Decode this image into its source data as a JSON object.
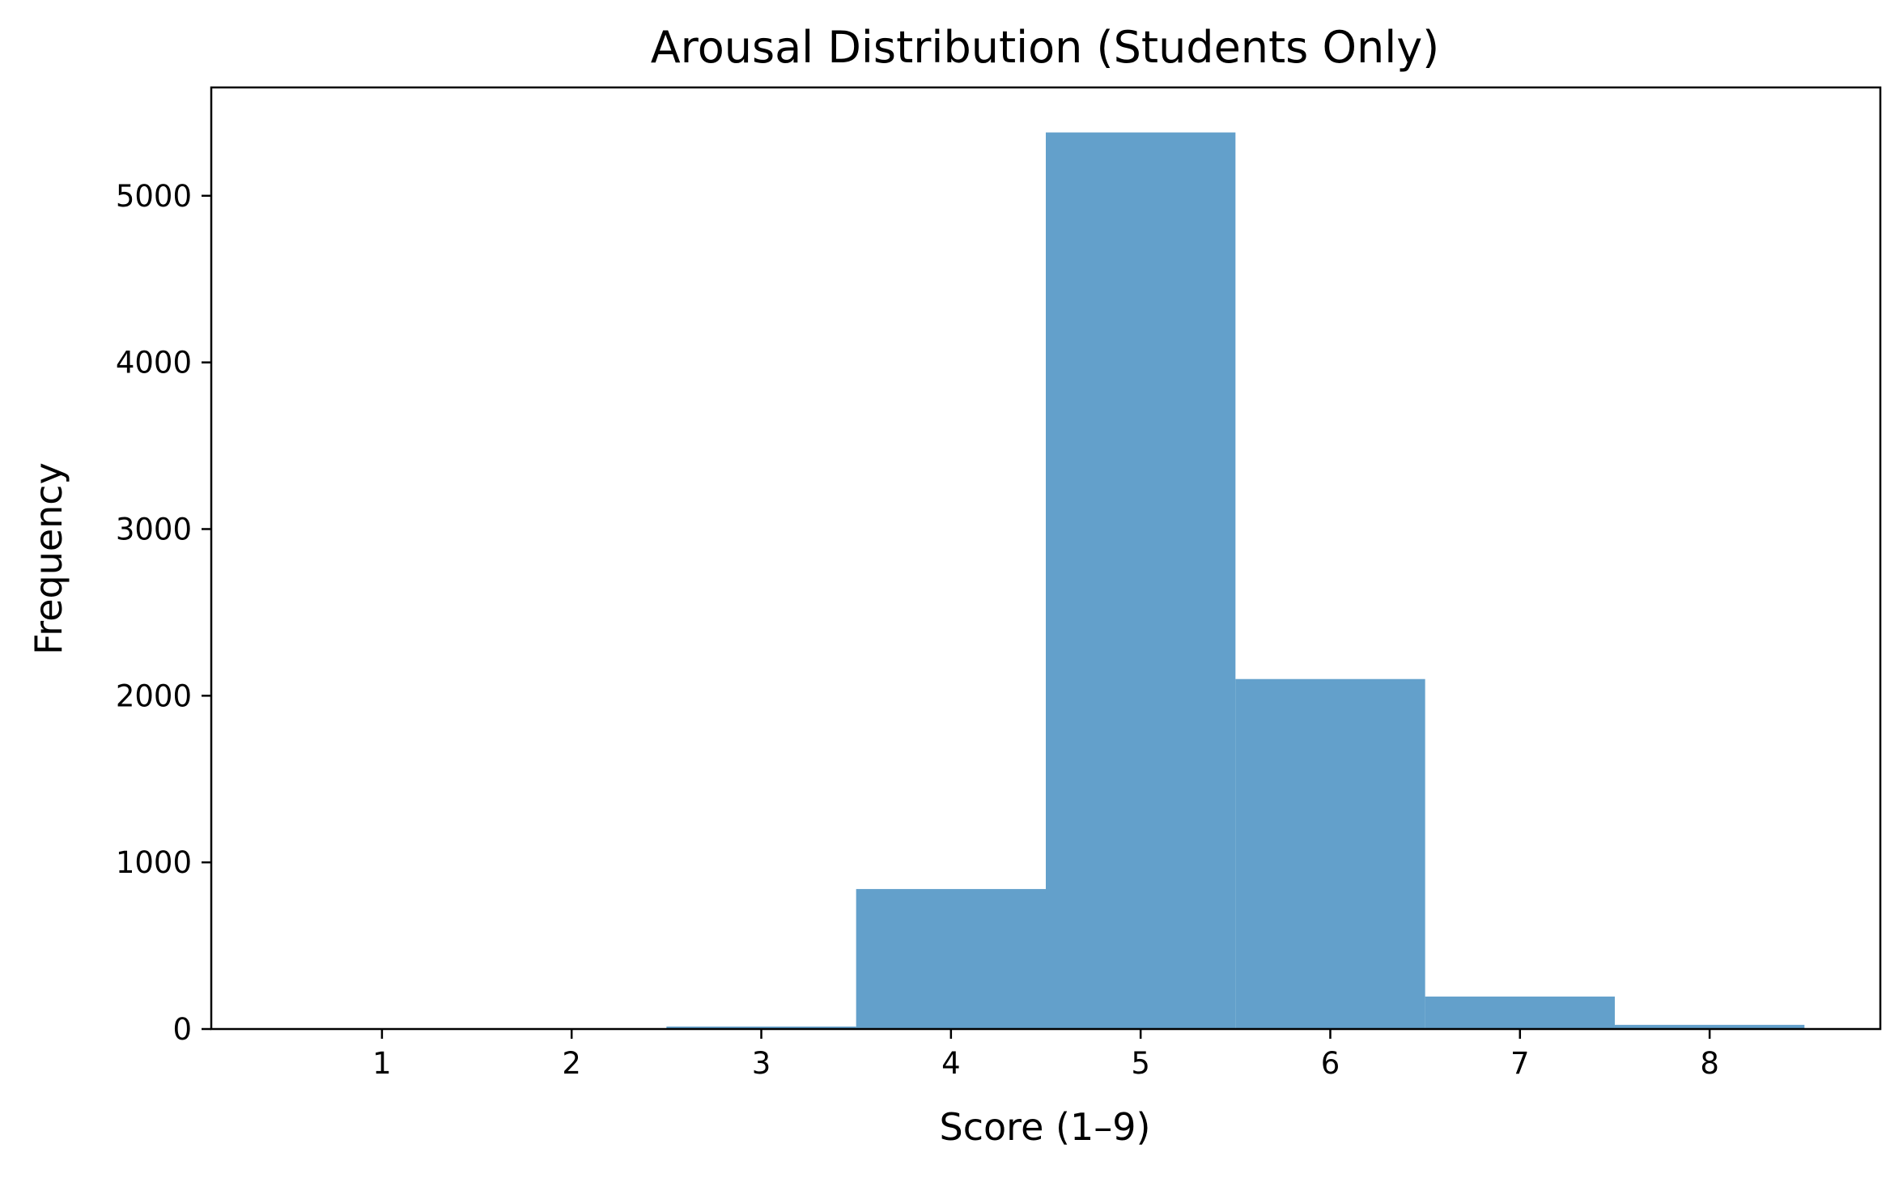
{
  "chart_data": {
    "type": "bar",
    "title": "Arousal Distribution (Students Only)",
    "xlabel": "Score (1–9)",
    "ylabel": "Frequency",
    "x": [
      3,
      4,
      5,
      6,
      7,
      8
    ],
    "values": [
      15,
      840,
      5380,
      2100,
      195,
      25
    ],
    "bar_width": 1,
    "xlim": [
      0.1,
      8.9
    ],
    "ylim": [
      0,
      5650
    ],
    "xticks": [
      1,
      2,
      3,
      4,
      5,
      6,
      7,
      8
    ],
    "yticks": [
      0,
      1000,
      2000,
      3000,
      4000,
      5000
    ],
    "bar_color": "#63a0cb",
    "grid": false,
    "legend": "none"
  }
}
